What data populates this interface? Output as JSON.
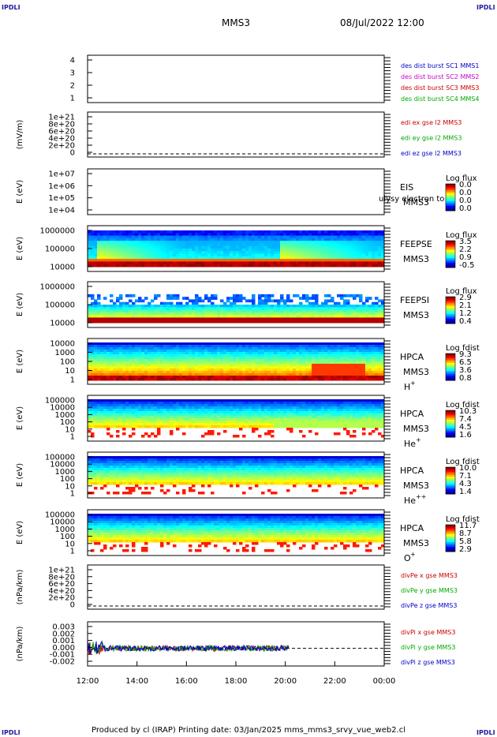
{
  "header": {
    "corner_label": "IPDLI",
    "spacecraft": "MMS3",
    "datetime": "08/Jul/2022 12:00"
  },
  "footer": {
    "text": "Produced by cl (IRAP)   Printing date: 03/Jan/2025   mms_mms3_srvy_vue_web2.cl"
  },
  "chart_data": {
    "type": "heatmap",
    "x_ticks": [
      "12:00",
      "14:00",
      "16:00",
      "18:00",
      "20:00",
      "22:00",
      "00:00"
    ],
    "panels": [
      {
        "id": "burst",
        "ylabel": "",
        "yticks": [
          "4",
          "3",
          "2",
          "1"
        ],
        "legend": [
          {
            "text": "des dist burst SC1 MMS1",
            "color": "#0000cc"
          },
          {
            "text": "des dist burst SC2 MMS2",
            "color": "#cc00cc"
          },
          {
            "text": "des dist burst SC3 MMS3",
            "color": "#cc0000"
          },
          {
            "text": "des dist burst SC4 MMS4",
            "color": "#00aa00"
          }
        ]
      },
      {
        "id": "edi",
        "ylabel": "(mV/m)",
        "yticks": [
          "1e+21",
          "8e+20",
          "6e+20",
          "4e+20",
          "2e+20",
          "0"
        ],
        "legend": [
          {
            "text": "edi ex gse l2 MMS3",
            "color": "#cc0000"
          },
          {
            "text": "edi ey gse l2 MMS3",
            "color": "#00aa00"
          },
          {
            "text": "edi ez gse l2 MMS3",
            "color": "#0000cc"
          }
        ]
      },
      {
        "id": "eis",
        "ylabel": "E (eV)",
        "yticks": [
          "1e+07",
          "1e+06",
          "1e+05",
          "1e+04"
        ],
        "instrument": "EIS",
        "subtitle": "MMS3",
        "overlay": "ulysy electron to",
        "cbar_title": "Log flux",
        "cbar_ticks": [
          "0.0",
          "0.0",
          "0.0",
          "0.0"
        ]
      },
      {
        "id": "feepse",
        "ylabel": "E (eV)",
        "yticks": [
          "1000000",
          "100000",
          "10000"
        ],
        "instrument": "FEEPSE",
        "subtitle": "MMS3",
        "cbar_title": "Log flux",
        "cbar_ticks": [
          "3.5",
          "2.2",
          "0.9",
          "-0.5"
        ]
      },
      {
        "id": "feepsi",
        "ylabel": "E (eV)",
        "yticks": [
          "1000000",
          "100000",
          "10000"
        ],
        "instrument": "FEEPSI",
        "subtitle": "MMS3",
        "cbar_title": "Log flux",
        "cbar_ticks": [
          "2.9",
          "2.1",
          "1.2",
          "0.4"
        ]
      },
      {
        "id": "hpca_h",
        "ylabel": "E (eV)",
        "yticks": [
          "10000",
          "1000",
          "100",
          "10",
          "1"
        ],
        "instrument": "HPCA",
        "subtitle": "MMS3",
        "species": "H",
        "charge": "+",
        "cbar_title": "Log fdist",
        "cbar_ticks": [
          "9.3",
          "6.5",
          "3.6",
          "0.8"
        ]
      },
      {
        "id": "hpca_he",
        "ylabel": "E (eV)",
        "yticks": [
          "100000",
          "10000",
          "1000",
          "100",
          "10",
          "1"
        ],
        "instrument": "HPCA",
        "subtitle": "MMS3",
        "species": "He",
        "charge": "+",
        "cbar_title": "Log fdist",
        "cbar_ticks": [
          "10.3",
          "7.4",
          "4.5",
          "1.6"
        ]
      },
      {
        "id": "hpca_hepp",
        "ylabel": "E (eV)",
        "yticks": [
          "100000",
          "10000",
          "1000",
          "100",
          "10",
          "1"
        ],
        "instrument": "HPCA",
        "subtitle": "MMS3",
        "species": "He",
        "charge": "++",
        "cbar_title": "Log fdist",
        "cbar_ticks": [
          "10.0",
          "7.1",
          "4.3",
          "1.4"
        ]
      },
      {
        "id": "hpca_o",
        "ylabel": "E (eV)",
        "yticks": [
          "100000",
          "10000",
          "1000",
          "100",
          "10",
          "1"
        ],
        "instrument": "HPCA",
        "subtitle": "MMS3",
        "species": "O",
        "charge": "+",
        "cbar_title": "Log fdist",
        "cbar_ticks": [
          "11.7",
          "8.7",
          "5.8",
          "2.9"
        ]
      },
      {
        "id": "divpe",
        "ylabel": "(nPa/km)",
        "yticks": [
          "1e+21",
          "8e+20",
          "6e+20",
          "4e+20",
          "2e+20",
          "0"
        ],
        "legend": [
          {
            "text": "divPe x gse MMS3",
            "color": "#cc0000"
          },
          {
            "text": "divPe y gse MMS3",
            "color": "#00aa00"
          },
          {
            "text": "divPe z gse MMS3",
            "color": "#0000cc"
          }
        ]
      },
      {
        "id": "divpi",
        "ylabel": "(nPa/km)",
        "yticks": [
          "0.003",
          "0.002",
          "0.001",
          "0.000",
          "-0.001",
          "-0.002"
        ],
        "legend": [
          {
            "text": "divPi x gse MMS3",
            "color": "#cc0000"
          },
          {
            "text": "divPi y gse MMS3",
            "color": "#00aa00"
          },
          {
            "text": "divPi z gse MMS3",
            "color": "#0000cc"
          }
        ]
      }
    ]
  }
}
